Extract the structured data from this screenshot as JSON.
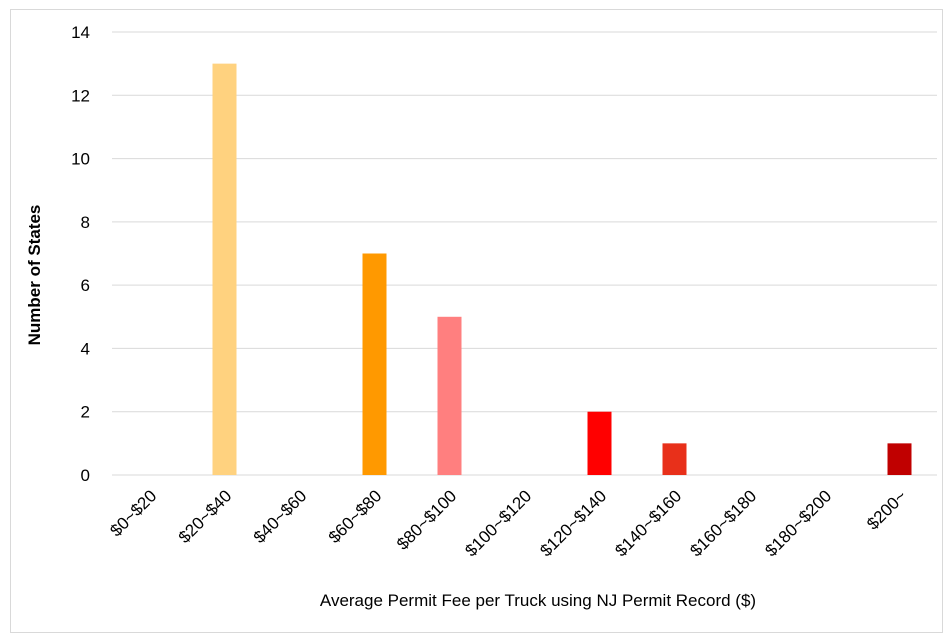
{
  "chart_data": {
    "type": "bar",
    "x_label": "Average Permit Fee per Truck using NJ Permit Record ($)",
    "y_label": "Number of States",
    "categories": [
      "$0~$20",
      "$20~$40",
      "$40~$60",
      "$60~$80",
      "$80~$100",
      "$100~$120",
      "$120~$140",
      "$140~$160",
      "$160~$180",
      "$180~$200",
      "$200~"
    ],
    "values": [
      0,
      13,
      0,
      7,
      5,
      0,
      2,
      1,
      0,
      0,
      1
    ],
    "colors": [
      null,
      "#ffd27f",
      null,
      "#ff9900",
      "#ff7f7f",
      null,
      "#ff0000",
      "#e8301a",
      null,
      null,
      "#c00000"
    ],
    "ylim": [
      0,
      14
    ],
    "yticks": [
      0,
      2,
      4,
      6,
      8,
      10,
      12,
      14
    ],
    "grid": true
  }
}
